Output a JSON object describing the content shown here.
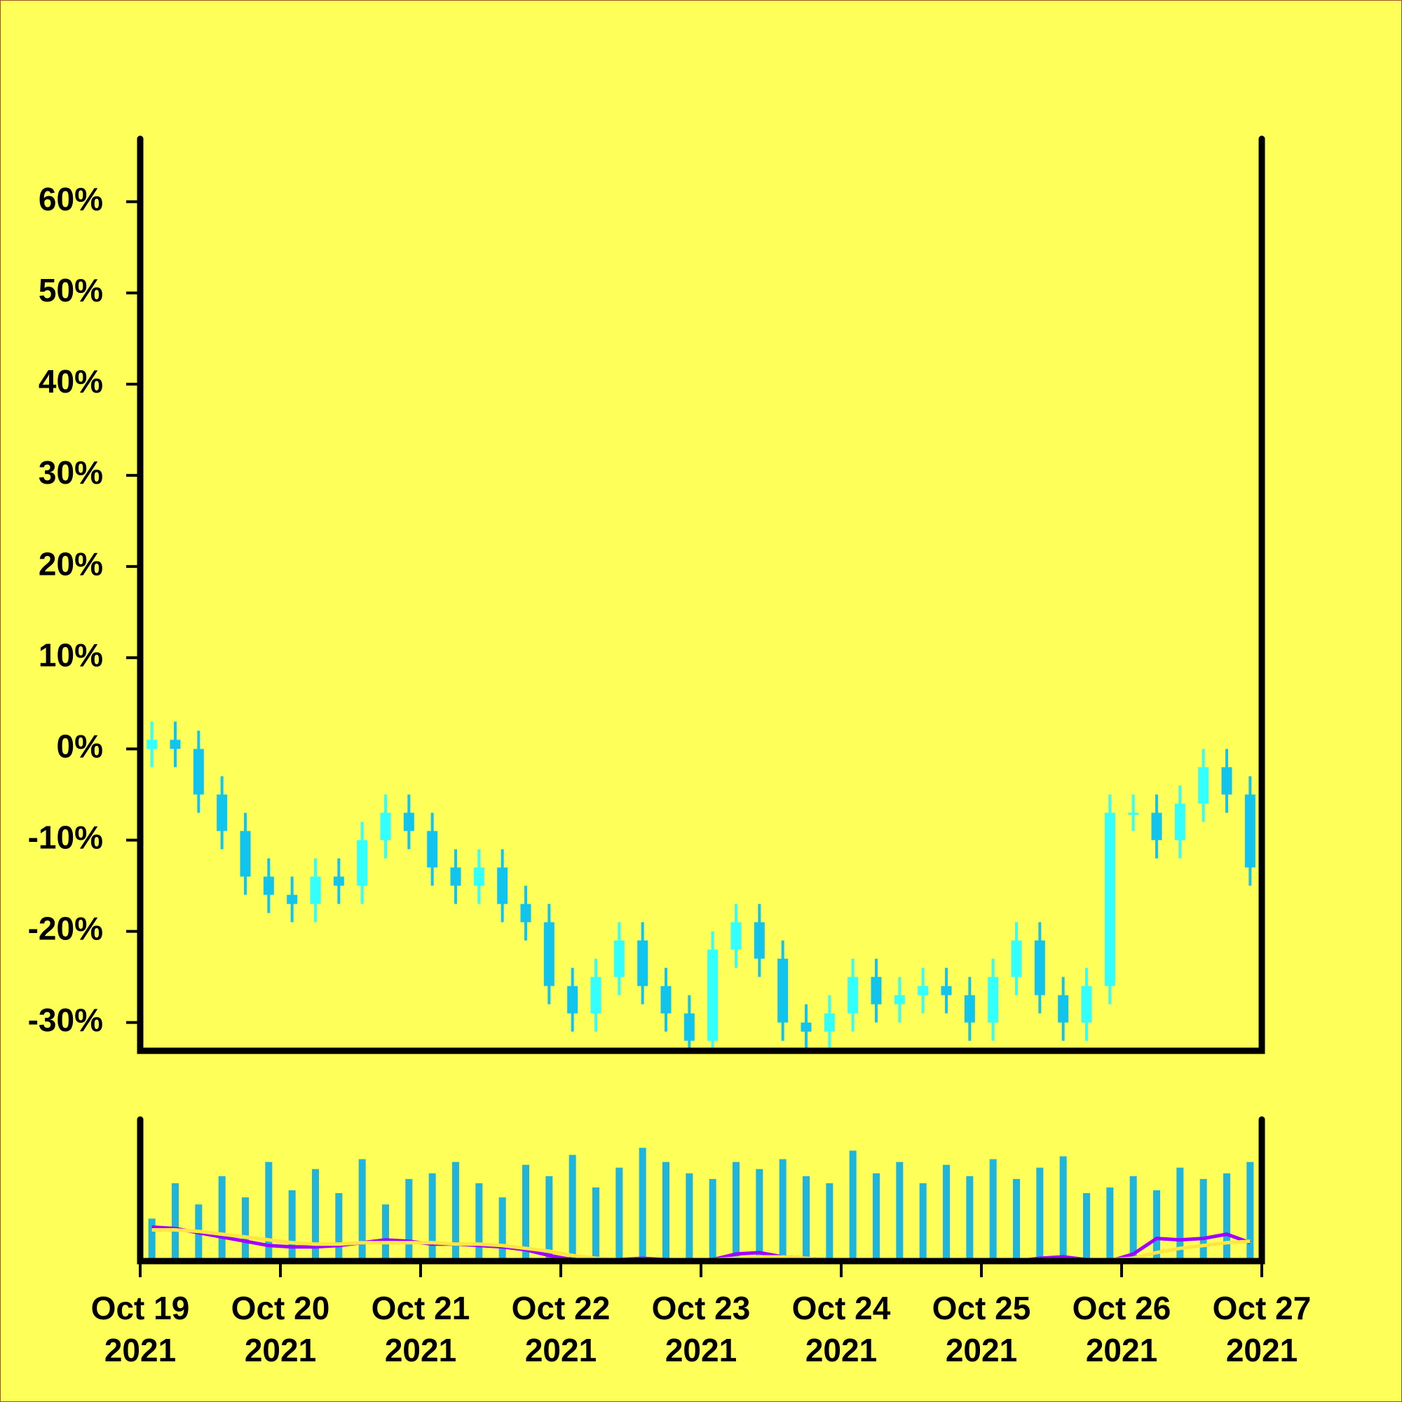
{
  "chart_data": [
    {
      "type": "candlestick",
      "x": [
        "2021-10-19T00:00",
        "2021-10-19T04:00",
        "2021-10-19T08:00",
        "2021-10-19T12:00",
        "2021-10-19T16:00",
        "2021-10-19T20:00",
        "2021-10-20T00:00",
        "2021-10-20T04:00",
        "2021-10-20T08:00",
        "2021-10-20T12:00",
        "2021-10-20T16:00",
        "2021-10-20T20:00",
        "2021-10-21T00:00",
        "2021-10-21T04:00",
        "2021-10-21T08:00",
        "2021-10-21T12:00",
        "2021-10-21T16:00",
        "2021-10-21T20:00",
        "2021-10-22T00:00",
        "2021-10-22T04:00",
        "2021-10-22T08:00",
        "2021-10-22T12:00",
        "2021-10-22T16:00",
        "2021-10-22T20:00",
        "2021-10-23T00:00",
        "2021-10-23T04:00",
        "2021-10-23T08:00",
        "2021-10-23T12:00",
        "2021-10-23T16:00",
        "2021-10-23T20:00",
        "2021-10-24T00:00",
        "2021-10-24T04:00",
        "2021-10-24T08:00",
        "2021-10-24T12:00",
        "2021-10-24T16:00",
        "2021-10-24T20:00",
        "2021-10-25T00:00",
        "2021-10-25T04:00",
        "2021-10-25T08:00",
        "2021-10-25T12:00",
        "2021-10-25T16:00",
        "2021-10-25T20:00",
        "2021-10-26T00:00",
        "2021-10-26T04:00",
        "2021-10-26T08:00",
        "2021-10-26T12:00",
        "2021-10-26T16:00",
        "2021-10-26T20:00"
      ],
      "open": [
        0,
        1,
        0,
        -5,
        -9,
        -14,
        -16,
        -17,
        -14,
        -15,
        -10,
        -7,
        -9,
        -13,
        -15,
        -13,
        -17,
        -19,
        -26,
        -29,
        -25,
        -21,
        -26,
        -29,
        -32,
        -22,
        -19,
        -23,
        -30,
        -31,
        -29,
        -25,
        -28,
        -27,
        -26,
        -27,
        -30,
        -25,
        -21,
        -27,
        -30,
        -26,
        -7,
        -7,
        -10,
        -6,
        -2,
        -5
      ],
      "high": [
        3,
        3,
        2,
        -3,
        -7,
        -12,
        -14,
        -12,
        -12,
        -8,
        -5,
        -5,
        -7,
        -11,
        -11,
        -11,
        -15,
        -17,
        -24,
        -23,
        -19,
        -19,
        -24,
        -27,
        -20,
        -17,
        -17,
        -21,
        -28,
        -27,
        -23,
        -23,
        -25,
        -24,
        -24,
        -25,
        -23,
        -19,
        -19,
        -25,
        -24,
        -5,
        -5,
        -5,
        -4,
        0,
        0,
        -3
      ],
      "low": [
        -2,
        -2,
        -7,
        -11,
        -16,
        -18,
        -19,
        -19,
        -17,
        -17,
        -12,
        -11,
        -15,
        -17,
        -17,
        -19,
        -21,
        -28,
        -31,
        -31,
        -27,
        -28,
        -31,
        -34,
        -34,
        -24,
        -25,
        -32,
        -33,
        -33,
        -31,
        -30,
        -30,
        -29,
        -29,
        -32,
        -32,
        -27,
        -29,
        -32,
        -32,
        -28,
        -9,
        -12,
        -12,
        -8,
        -7,
        -15
      ],
      "close": [
        1,
        0,
        -5,
        -9,
        -14,
        -16,
        -17,
        -14,
        -15,
        -10,
        -7,
        -9,
        -13,
        -15,
        -13,
        -17,
        -19,
        -26,
        -29,
        -25,
        -21,
        -26,
        -29,
        -32,
        -22,
        -19,
        -23,
        -30,
        -31,
        -29,
        -25,
        -28,
        -27,
        -26,
        -27,
        -30,
        -25,
        -21,
        -27,
        -30,
        -26,
        -7,
        -7,
        -10,
        -6,
        -2,
        -5,
        -13
      ],
      "up_color": "#33ffff",
      "down_color": "#11c4ee",
      "xlim": [
        "2021-10-19",
        "2021-10-27"
      ],
      "ylim": [
        -33.1,
        66.9
      ],
      "yticks": [
        {
          "value": -30,
          "label": "-30%"
        },
        {
          "value": -20,
          "label": "-20%"
        },
        {
          "value": -10,
          "label": "-10%"
        },
        {
          "value": 0,
          "label": "0%"
        },
        {
          "value": 10,
          "label": "10%"
        },
        {
          "value": 20,
          "label": "20%"
        },
        {
          "value": 30,
          "label": "30%"
        },
        {
          "value": 40,
          "label": "40%"
        },
        {
          "value": 50,
          "label": "50%"
        },
        {
          "value": 60,
          "label": "60%"
        }
      ]
    },
    {
      "type": "bar",
      "values": [
        30,
        55,
        40,
        60,
        45,
        70,
        50,
        65,
        48,
        72,
        40,
        58,
        62,
        70,
        55,
        45,
        68,
        60,
        75,
        52,
        66,
        80,
        70,
        62,
        58,
        70,
        65,
        72,
        60,
        55,
        78,
        62,
        70,
        55,
        68,
        60,
        72,
        58,
        66,
        74,
        48,
        52,
        60,
        50,
        66,
        58,
        62,
        70
      ],
      "color": "#1fb4dc",
      "lines": [
        {
          "color": "#a000ff",
          "values": [
            24,
            23,
            20,
            17,
            14,
            11,
            10,
            10,
            11,
            13,
            15,
            14,
            12,
            12,
            11,
            10,
            8,
            4,
            1,
            0,
            1,
            2,
            1,
            0,
            1,
            5,
            6,
            3,
            2,
            1,
            0,
            1,
            1,
            0,
            1,
            1,
            1,
            0,
            2,
            3,
            1,
            0,
            5,
            16,
            15,
            16,
            19,
            13
          ]
        },
        {
          "color": "#ffe640",
          "values": [
            22,
            22,
            21,
            19,
            17,
            15,
            13,
            12,
            12,
            13,
            13,
            13,
            13,
            12,
            12,
            11,
            9,
            7,
            4,
            2,
            1,
            1,
            1,
            1,
            1,
            2,
            3,
            3,
            2,
            1,
            1,
            1,
            1,
            1,
            1,
            1,
            1,
            1,
            1,
            1,
            1,
            1,
            2,
            6,
            9,
            11,
            13,
            14
          ]
        }
      ],
      "xlim": [
        "2021-10-19",
        "2021-10-27"
      ],
      "ylim": [
        0,
        100
      ],
      "xticks": [
        {
          "value": "2021-10-19",
          "label": "Oct 19\n2021"
        },
        {
          "value": "2021-10-20",
          "label": "Oct 20\n2021"
        },
        {
          "value": "2021-10-21",
          "label": "Oct 21\n2021"
        },
        {
          "value": "2021-10-22",
          "label": "Oct 22\n2021"
        },
        {
          "value": "2021-10-23",
          "label": "Oct 23\n2021"
        },
        {
          "value": "2021-10-24",
          "label": "Oct 24\n2021"
        },
        {
          "value": "2021-10-25",
          "label": "Oct 25\n2021"
        },
        {
          "value": "2021-10-26",
          "label": "Oct 26\n2021"
        },
        {
          "value": "2021-10-27",
          "label": "Oct 27\n2021"
        }
      ]
    }
  ]
}
